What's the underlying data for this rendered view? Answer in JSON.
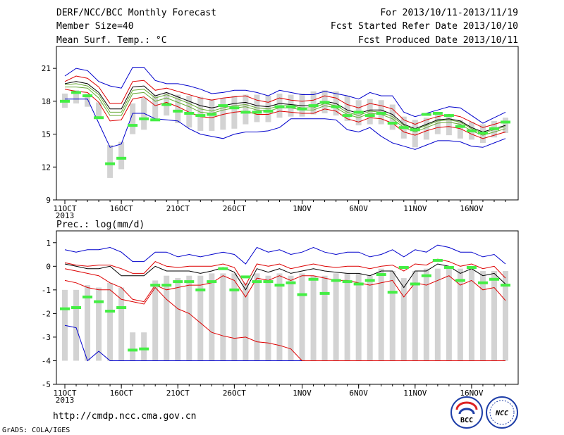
{
  "header": {
    "left": [
      "DERF/NCC/BCC Monthly Forecast",
      "Member Size=40",
      "Mean Surf. Temp.: °C"
    ],
    "right": [
      "For 2013/10/11-2013/11/19",
      "Fcst Started Refer Date 2013/10/10",
      "Fcst Produced Date 2013/10/11"
    ]
  },
  "footer": {
    "url": "http://cmdp.ncc.cma.gov.cn",
    "grads": "GrADS: COLA/IGES"
  },
  "logos": {
    "left_text": "BCC",
    "right_text": "NCC"
  },
  "colors": {
    "envelope": "#0000cc",
    "spread": "#dd0000",
    "median": "#000000",
    "band": "#66aa33",
    "obs": "#44ee44",
    "box": "#d3d3d3"
  },
  "chart_data": [
    {
      "type": "line",
      "title": "Mean Surf. Temp.: °C",
      "ylim": [
        9,
        23
      ],
      "yticks": [
        9,
        12,
        15,
        18,
        21
      ],
      "xticks": [
        {
          "day": 0,
          "label": "11OCT",
          "sub": "2013"
        },
        {
          "day": 5,
          "label": "16OCT"
        },
        {
          "day": 10,
          "label": "21OCT"
        },
        {
          "day": 15,
          "label": "26OCT"
        },
        {
          "day": 21,
          "label": "1NOV"
        },
        {
          "day": 26,
          "label": "6NOV"
        },
        {
          "day": 31,
          "label": "11NOV"
        },
        {
          "day": 36,
          "label": "16NOV"
        }
      ],
      "days": [
        0,
        1,
        2,
        3,
        4,
        5,
        6,
        7,
        8,
        9,
        10,
        11,
        12,
        13,
        14,
        15,
        16,
        17,
        18,
        19,
        20,
        21,
        22,
        23,
        24,
        25,
        26,
        27,
        28,
        29,
        30,
        31,
        32,
        33,
        34,
        35,
        36,
        37,
        38,
        39
      ],
      "box_low": [
        17.4,
        17.8,
        17.5,
        16.4,
        11.0,
        11.8,
        15.0,
        15.4,
        16.2,
        16.7,
        16.0,
        15.6,
        15.3,
        15.3,
        15.4,
        15.5,
        15.9,
        16.1,
        16.1,
        16.5,
        16.6,
        16.6,
        16.8,
        16.9,
        16.7,
        16.2,
        15.8,
        15.9,
        15.9,
        15.4,
        14.6,
        13.8,
        14.5,
        15.0,
        14.9,
        14.6,
        14.5,
        14.2,
        14.7,
        15.1
      ],
      "box_high": [
        18.7,
        19.0,
        18.7,
        17.9,
        14.0,
        14.3,
        17.8,
        18.3,
        18.6,
        18.8,
        18.6,
        18.5,
        18.4,
        18.2,
        18.3,
        18.5,
        18.6,
        18.6,
        18.5,
        18.7,
        18.6,
        18.7,
        18.9,
        19.0,
        18.9,
        18.5,
        18.1,
        18.2,
        18.1,
        17.7,
        16.6,
        16.3,
        16.5,
        16.8,
        16.6,
        16.3,
        16.1,
        15.9,
        16.2,
        16.5
      ],
      "obs": [
        18.0,
        18.8,
        18.5,
        16.5,
        12.3,
        12.8,
        15.8,
        16.4,
        16.3,
        17.7,
        17.1,
        16.9,
        16.7,
        16.8,
        17.6,
        17.4,
        17.0,
        17.0,
        17.1,
        17.5,
        17.5,
        17.3,
        17.6,
        17.9,
        17.5,
        16.7,
        17.0,
        16.7,
        16.9,
        16.0,
        15.6,
        15.4,
        16.8,
        16.9,
        16.7,
        15.7,
        15.3,
        15.1,
        15.5,
        16.1
      ],
      "series": [
        {
          "name": "",
          "role": "max",
          "values": [
            20.3,
            21.0,
            20.8,
            19.8,
            19.4,
            19.2,
            21.1,
            21.1,
            19.9,
            19.6,
            19.6,
            19.4,
            19.1,
            18.7,
            18.8,
            19.0,
            19.0,
            18.8,
            18.5,
            19.0,
            18.8,
            18.6,
            18.6,
            18.9,
            18.7,
            18.5,
            18.2,
            18.8,
            18.5,
            18.5,
            17.0,
            16.6,
            16.9,
            17.2,
            17.5,
            17.4,
            16.7,
            16.0,
            16.5,
            17.0
          ]
        },
        {
          "name": "",
          "role": "upper",
          "values": [
            19.8,
            20.3,
            20.1,
            19.3,
            17.8,
            17.8,
            19.8,
            19.9,
            19.0,
            19.2,
            18.9,
            18.6,
            18.3,
            18.1,
            18.3,
            18.4,
            18.5,
            18.1,
            17.9,
            18.3,
            18.1,
            18.0,
            18.1,
            18.5,
            18.3,
            17.7,
            17.4,
            17.8,
            17.6,
            17.3,
            16.3,
            15.9,
            16.3,
            16.6,
            16.8,
            16.6,
            16.1,
            15.6,
            15.9,
            16.2
          ]
        },
        {
          "name": "",
          "role": "median",
          "values": [
            19.6,
            19.8,
            19.6,
            18.8,
            17.3,
            17.3,
            19.3,
            19.4,
            18.5,
            18.8,
            18.4,
            18.0,
            17.6,
            17.4,
            17.6,
            17.8,
            17.9,
            17.6,
            17.5,
            17.8,
            17.7,
            17.6,
            17.6,
            18.0,
            17.8,
            17.2,
            16.9,
            17.2,
            17.2,
            16.8,
            15.9,
            15.5,
            15.9,
            16.3,
            16.4,
            16.2,
            15.6,
            15.2,
            15.5,
            15.8
          ]
        },
        {
          "name": "",
          "role": "band_hi",
          "values": [
            19.5,
            19.6,
            19.4,
            18.6,
            17.0,
            17.0,
            19.0,
            19.1,
            18.3,
            18.6,
            18.2,
            17.8,
            17.3,
            17.1,
            17.4,
            17.6,
            17.7,
            17.4,
            17.3,
            17.6,
            17.6,
            17.4,
            17.4,
            17.8,
            17.6,
            17.0,
            16.7,
            17.1,
            17.0,
            16.6,
            15.8,
            15.4,
            15.8,
            16.2,
            16.3,
            16.1,
            15.5,
            15.1,
            15.4,
            15.7
          ]
        },
        {
          "name": "",
          "role": "band_lo",
          "values": [
            19.3,
            19.3,
            19.2,
            18.3,
            16.7,
            16.7,
            18.7,
            18.8,
            18.0,
            18.3,
            17.9,
            17.5,
            17.0,
            16.9,
            17.2,
            17.4,
            17.5,
            17.2,
            17.1,
            17.4,
            17.4,
            17.2,
            17.2,
            17.6,
            17.4,
            16.8,
            16.5,
            16.9,
            16.8,
            16.4,
            15.6,
            15.2,
            15.6,
            16.0,
            16.1,
            15.9,
            15.3,
            14.9,
            15.2,
            15.5
          ]
        },
        {
          "name": "",
          "role": "lower",
          "values": [
            19.1,
            18.9,
            18.8,
            17.9,
            16.2,
            16.3,
            18.2,
            18.4,
            17.6,
            17.9,
            17.5,
            17.0,
            16.6,
            16.5,
            16.8,
            17.0,
            17.1,
            16.8,
            16.8,
            17.1,
            17.0,
            16.9,
            16.9,
            17.3,
            17.1,
            16.4,
            16.1,
            16.5,
            16.4,
            16.0,
            15.2,
            14.9,
            15.3,
            15.6,
            15.7,
            15.5,
            15.0,
            14.6,
            14.9,
            15.2
          ]
        },
        {
          "name": "",
          "role": "min",
          "values": [
            18.2,
            18.2,
            18.2,
            16.0,
            13.8,
            14.1,
            16.9,
            16.9,
            16.4,
            16.3,
            16.2,
            15.5,
            15.0,
            14.8,
            14.6,
            15.0,
            15.2,
            15.2,
            15.3,
            15.6,
            16.4,
            16.4,
            16.4,
            16.4,
            16.3,
            15.4,
            15.2,
            15.6,
            14.8,
            14.2,
            13.9,
            13.6,
            14.0,
            14.4,
            14.4,
            14.3,
            13.9,
            13.8,
            14.2,
            14.6
          ]
        }
      ]
    },
    {
      "type": "line",
      "title": "Prec.: log(mm/d)",
      "ylim": [
        -5,
        1.5
      ],
      "yticks": [
        -5,
        -4,
        -3,
        -2,
        -1,
        0,
        1
      ],
      "xticks": [
        {
          "day": 0,
          "label": "11OCT",
          "sub": "2013"
        },
        {
          "day": 5,
          "label": "16OCT"
        },
        {
          "day": 10,
          "label": "21OCT"
        },
        {
          "day": 15,
          "label": "26OCT"
        },
        {
          "day": 21,
          "label": "1NOV"
        },
        {
          "day": 26,
          "label": "6NOV"
        },
        {
          "day": 31,
          "label": "11NOV"
        },
        {
          "day": 36,
          "label": "16NOV"
        }
      ],
      "days": [
        0,
        1,
        2,
        3,
        4,
        5,
        6,
        7,
        8,
        9,
        10,
        11,
        12,
        13,
        14,
        15,
        16,
        17,
        18,
        19,
        20,
        21,
        22,
        23,
        24,
        25,
        26,
        27,
        28,
        29,
        30,
        31,
        32,
        33,
        34,
        35,
        36,
        37,
        38,
        39
      ],
      "box_low": [
        -4.0,
        -4.0,
        -4.0,
        -4.0,
        -4.0,
        -4.0,
        -4.0,
        -4.0,
        -4.0,
        -4.0,
        -4.0,
        -4.0,
        -4.0,
        -4.0,
        -4.0,
        -4.0,
        -4.0,
        -4.0,
        -4.0,
        -4.0,
        -4.0,
        -4.0,
        -4.0,
        -4.0,
        -4.0,
        -4.0,
        -4.0,
        -4.0,
        -4.0,
        -4.0,
        -4.0,
        -4.0,
        -4.0,
        -4.0,
        -4.0,
        -4.0,
        -4.0,
        -4.0,
        -4.0,
        -4.0
      ],
      "box_high": [
        -1.0,
        -1.0,
        -0.8,
        -0.9,
        -0.7,
        -0.9,
        -2.8,
        -2.8,
        -0.6,
        -0.4,
        -0.5,
        -0.4,
        -0.4,
        -0.3,
        -0.3,
        -0.3,
        -0.7,
        -0.3,
        -0.4,
        -0.3,
        -0.4,
        -0.3,
        -0.4,
        -0.4,
        -0.3,
        -0.3,
        -0.3,
        -0.4,
        -0.1,
        -0.2,
        -0.5,
        -0.2,
        -0.1,
        -0.1,
        -0.1,
        -0.1,
        -0.1,
        -0.2,
        -0.2,
        -0.2
      ],
      "obs": [
        -1.8,
        -1.75,
        -1.3,
        -1.5,
        -1.9,
        -1.75,
        -3.55,
        -3.5,
        -0.8,
        -0.8,
        -0.65,
        -0.65,
        -1.0,
        -0.65,
        -0.1,
        -1.0,
        -0.45,
        -0.65,
        -0.65,
        -0.8,
        -0.7,
        -1.2,
        -0.55,
        -1.15,
        -0.6,
        -0.65,
        -0.75,
        -0.6,
        -0.35,
        -1.1,
        -0.05,
        -0.75,
        -0.4,
        0.25,
        -0.05,
        -0.6,
        -0.05,
        -0.7,
        -0.55,
        -0.8
      ],
      "series": [
        {
          "name": "",
          "role": "max",
          "values": [
            0.7,
            0.6,
            0.7,
            0.7,
            0.8,
            0.6,
            0.2,
            0.2,
            0.6,
            0.6,
            0.4,
            0.5,
            0.4,
            0.5,
            0.6,
            0.5,
            0.1,
            0.8,
            0.6,
            0.7,
            0.5,
            0.6,
            0.8,
            0.6,
            0.5,
            0.6,
            0.6,
            0.4,
            0.5,
            0.7,
            0.4,
            0.7,
            0.6,
            0.9,
            0.8,
            0.6,
            0.6,
            0.4,
            0.5,
            0.1
          ]
        },
        {
          "name": "",
          "role": "upper",
          "values": [
            0.15,
            0.05,
            0.0,
            0.05,
            0.05,
            -0.1,
            -0.3,
            -0.3,
            0.2,
            0.0,
            -0.05,
            0.0,
            0.0,
            0.0,
            0.1,
            -0.05,
            -0.8,
            0.1,
            0.0,
            0.1,
            -0.1,
            0.0,
            0.1,
            0.0,
            -0.05,
            0.0,
            0.0,
            -0.1,
            0.0,
            0.05,
            -0.2,
            0.1,
            0.05,
            0.3,
            0.2,
            0.0,
            0.1,
            -0.1,
            0.0,
            -0.5
          ]
        },
        {
          "name": "",
          "role": "median",
          "values": [
            0.1,
            0.0,
            -0.1,
            -0.1,
            0.0,
            -0.4,
            -0.4,
            -0.4,
            0.0,
            -0.2,
            -0.2,
            -0.2,
            -0.3,
            -0.2,
            -0.05,
            -0.25,
            -1.0,
            -0.1,
            -0.25,
            -0.1,
            -0.3,
            -0.2,
            -0.1,
            -0.2,
            -0.25,
            -0.3,
            -0.3,
            -0.4,
            -0.2,
            -0.2,
            -0.9,
            -0.2,
            -0.2,
            0.1,
            0.0,
            -0.3,
            -0.1,
            -0.4,
            -0.3,
            -0.75
          ]
        },
        {
          "name": "",
          "role": "lower",
          "values": [
            -0.1,
            -0.2,
            -0.3,
            -0.4,
            -0.7,
            -0.9,
            -1.4,
            -1.5,
            -0.8,
            -1.0,
            -0.9,
            -0.8,
            -0.8,
            -0.7,
            -0.4,
            -0.6,
            -1.3,
            -0.5,
            -0.6,
            -0.4,
            -0.6,
            -0.4,
            -0.4,
            -0.5,
            -0.6,
            -0.6,
            -0.7,
            -0.8,
            -0.7,
            -0.6,
            -1.3,
            -0.7,
            -0.8,
            -0.6,
            -0.4,
            -0.8,
            -0.6,
            -1.0,
            -0.9,
            -1.45
          ]
        },
        {
          "name": "",
          "role": "min",
          "values": [
            -2.5,
            -2.6,
            -4.0,
            -3.6,
            -4.0,
            -4.0,
            -4.0,
            -4.0,
            -4.0,
            -4.0,
            -4.0,
            -4.0,
            -4.0,
            -4.0,
            -4.0,
            -4.0,
            -4.0,
            -4.0,
            -4.0,
            -4.0,
            -4.0,
            -4.0,
            -4.0,
            -4.0,
            -4.0,
            -4.0,
            -4.0,
            -4.0,
            -4.0,
            -4.0,
            -4.0,
            -4.0,
            -4.0,
            -4.0,
            -4.0,
            -4.0,
            -4.0,
            -4.0,
            -4.0,
            -4.0
          ]
        },
        {
          "name": "",
          "role": "red_min",
          "values": [
            -0.6,
            -0.7,
            -0.9,
            -1.0,
            -1.0,
            -1.4,
            -1.5,
            -1.6,
            -0.9,
            -1.4,
            -1.8,
            -2.0,
            -2.4,
            -2.8,
            -2.95,
            -3.05,
            -3.0,
            -3.2,
            -3.25,
            -3.35,
            -3.5,
            -4.0,
            -4.0,
            -4.0,
            -4.0,
            -4.0,
            -4.0,
            -4.0,
            -4.0,
            -4.0,
            -4.0,
            -4.0,
            -4.0,
            -4.0,
            -4.0,
            -4.0,
            -4.0,
            -4.0,
            -4.0,
            -4.0
          ]
        }
      ]
    }
  ]
}
